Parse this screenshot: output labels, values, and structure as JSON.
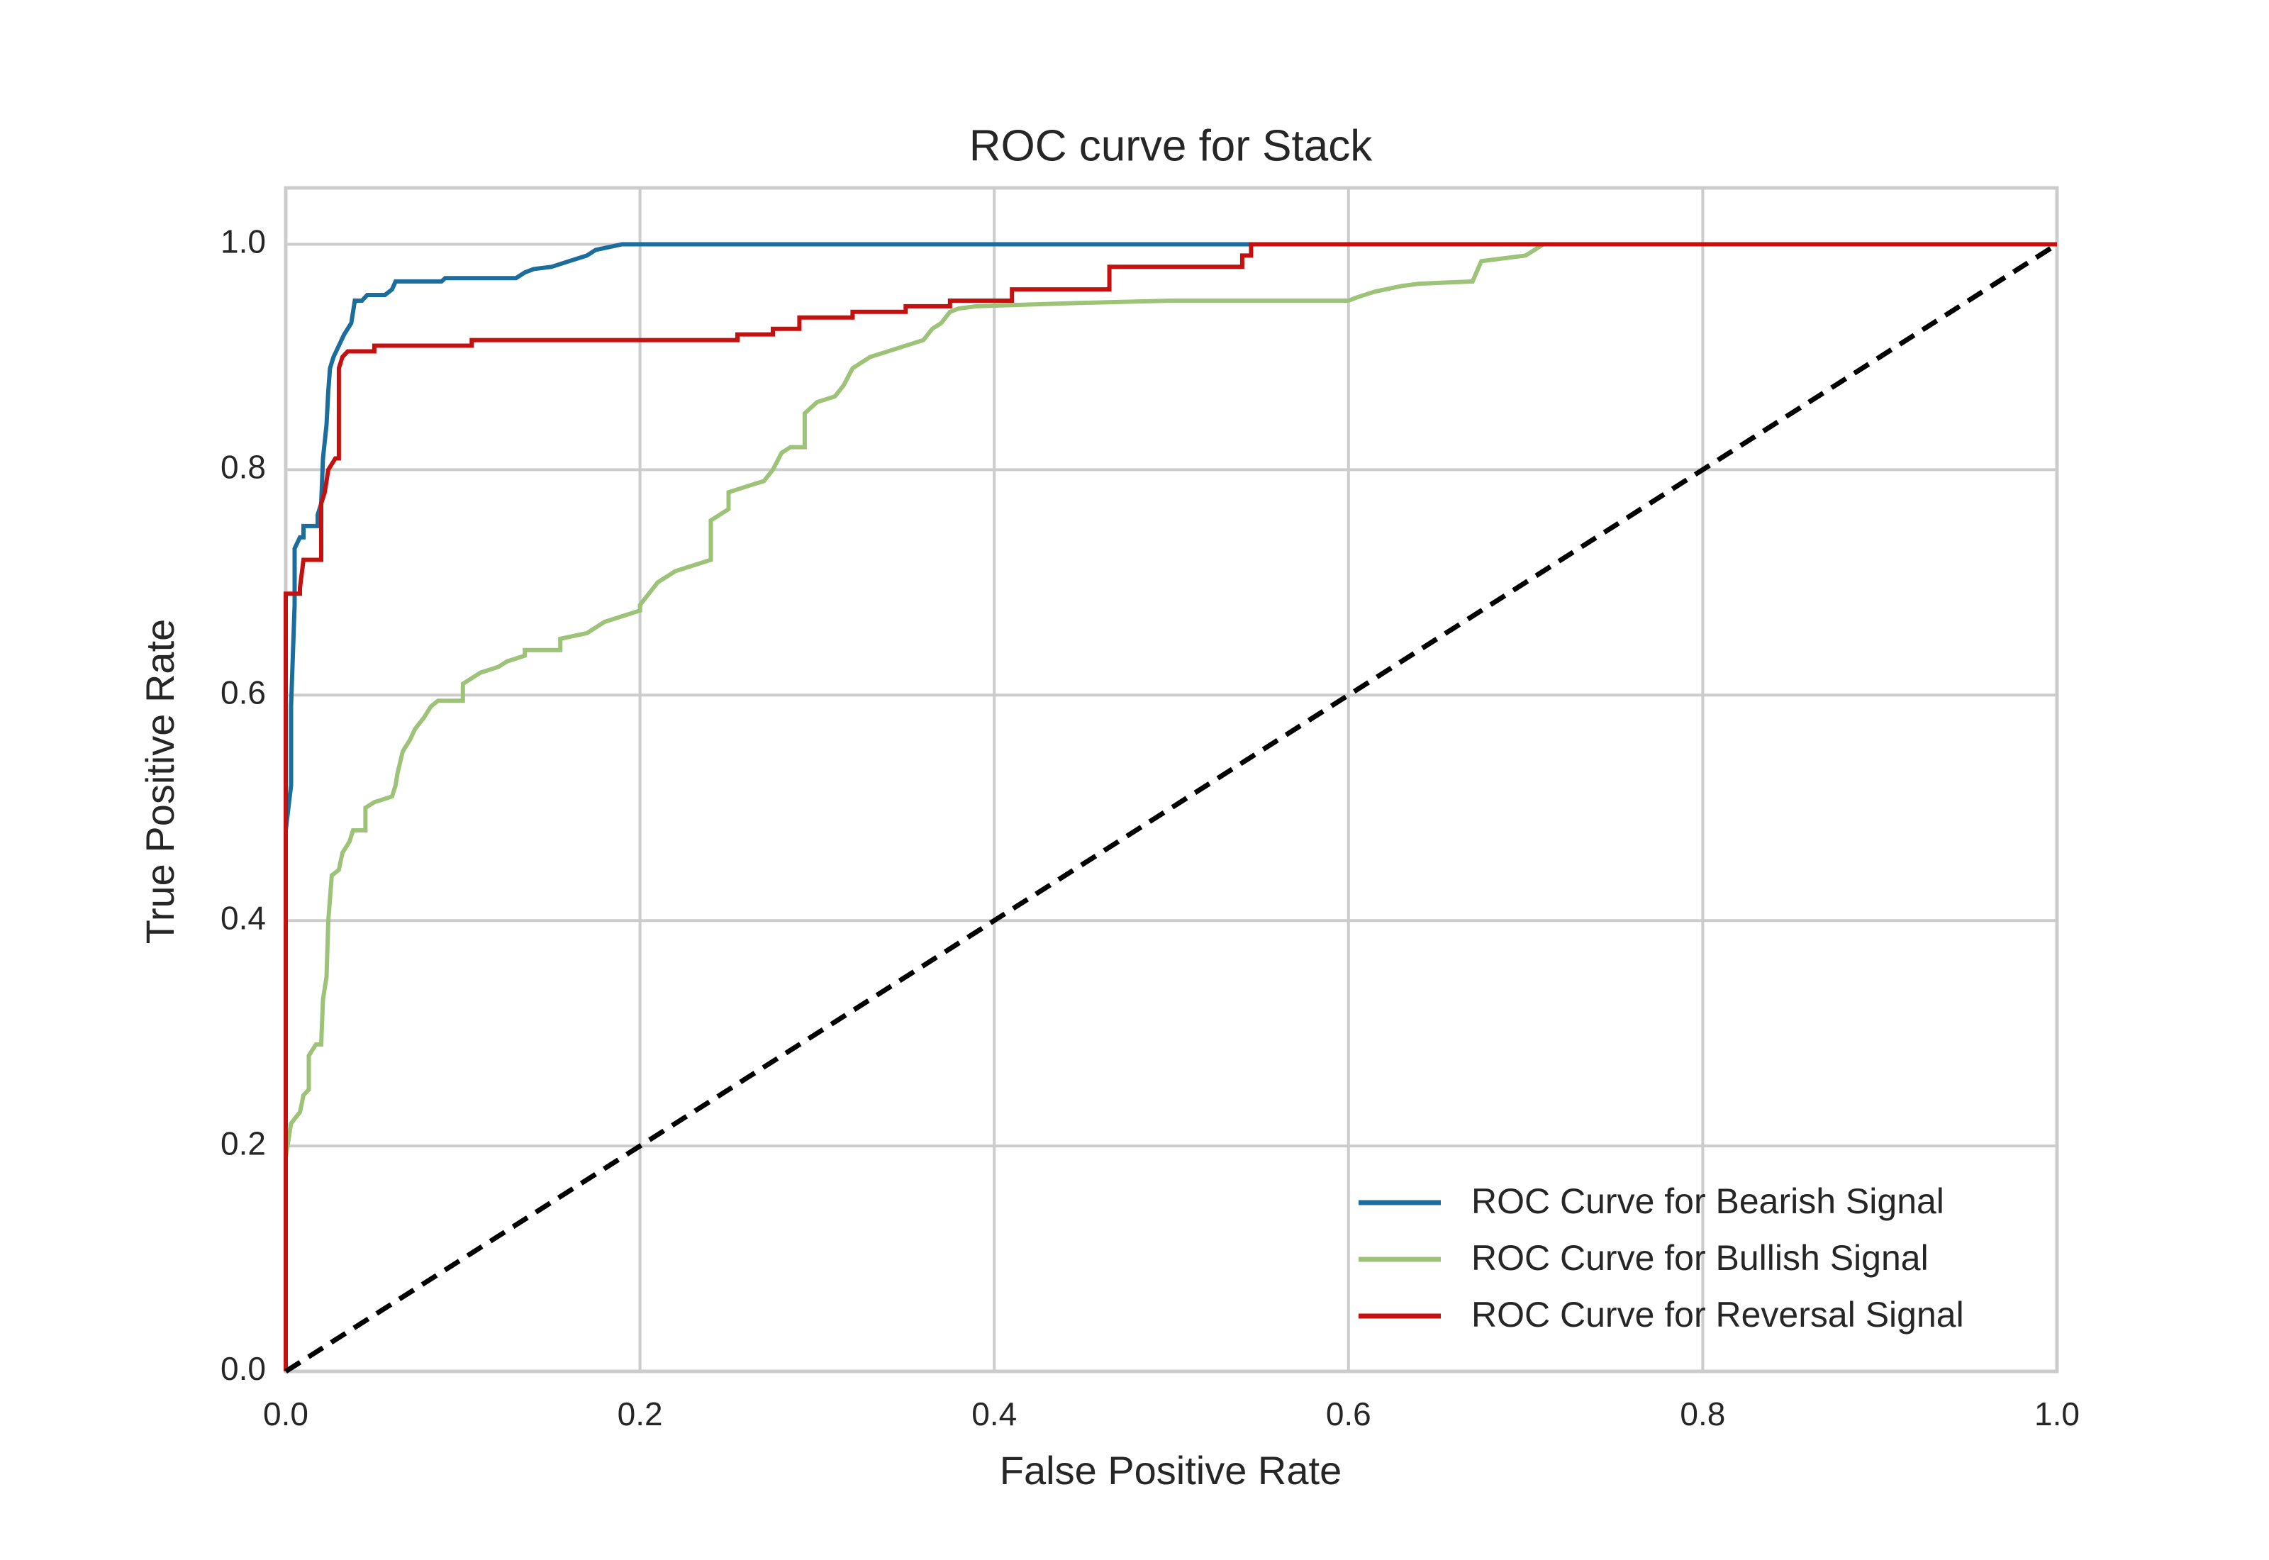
{
  "chart_data": {
    "type": "line",
    "title": "ROC curve for Stack",
    "x_label": "False Positive Rate",
    "y_label": "True Positive Rate",
    "xlim": [
      0,
      1
    ],
    "ylim": [
      0,
      1.05
    ],
    "xticks": [
      {
        "value": 0,
        "label": "0.0"
      },
      0.2,
      0.4,
      0.6,
      0.8,
      {
        "value": 1,
        "label": "1.0"
      }
    ],
    "yticks": [
      {
        "value": 0,
        "label": "0.0"
      },
      0.2,
      0.4,
      0.6,
      0.8,
      {
        "value": 1,
        "label": "1.0"
      }
    ],
    "grid": true,
    "legend": "lower right",
    "series": [
      {
        "name": "ROC Curve for Bearish Signal",
        "color": "#1a6d9c",
        "x": [
          0,
          0,
          0.003,
          0.003,
          0.005,
          0.005,
          0.008,
          0.01,
          0.01,
          0.018,
          0.018,
          0.02,
          0.021,
          0.023,
          0.024,
          0.025,
          0.027,
          0.03,
          0.033,
          0.037,
          0.038,
          0.039,
          0.043,
          0.046,
          0.056,
          0.06,
          0.062,
          0.088,
          0.09,
          0.13,
          0.135,
          0.14,
          0.15,
          0.16,
          0.17,
          0.175,
          0.19,
          1
        ],
        "values": [
          0,
          0.48,
          0.52,
          0.59,
          0.68,
          0.73,
          0.74,
          0.74,
          0.75,
          0.75,
          0.76,
          0.77,
          0.81,
          0.84,
          0.87,
          0.89,
          0.9,
          0.91,
          0.92,
          0.93,
          0.94,
          0.95,
          0.95,
          0.955,
          0.955,
          0.96,
          0.967,
          0.967,
          0.97,
          0.97,
          0.975,
          0.978,
          0.98,
          0.985,
          0.99,
          0.995,
          1,
          1
        ]
      },
      {
        "name": "ROC Curve for Bullish Signal",
        "color": "#9dc378",
        "x": [
          0,
          0,
          0.003,
          0.008,
          0.01,
          0.013,
          0.013,
          0.017,
          0.02,
          0.021,
          0.023,
          0.024,
          0.026,
          0.03,
          0.032,
          0.036,
          0.038,
          0.045,
          0.045,
          0.05,
          0.06,
          0.062,
          0.063,
          0.066,
          0.07,
          0.073,
          0.078,
          0.082,
          0.086,
          0.1,
          0.1,
          0.11,
          0.12,
          0.125,
          0.135,
          0.135,
          0.155,
          0.155,
          0.17,
          0.18,
          0.19,
          0.2,
          0.2,
          0.205,
          0.21,
          0.22,
          0.24,
          0.24,
          0.25,
          0.25,
          0.26,
          0.27,
          0.275,
          0.28,
          0.285,
          0.293,
          0.293,
          0.3,
          0.31,
          0.315,
          0.32,
          0.33,
          0.34,
          0.35,
          0.36,
          0.365,
          0.37,
          0.375,
          0.38,
          0.39,
          0.45,
          0.5,
          0.6,
          0.605,
          0.615,
          0.63,
          0.64,
          0.67,
          0.675,
          0.7,
          0.71,
          1
        ],
        "values": [
          0,
          0.19,
          0.22,
          0.23,
          0.245,
          0.25,
          0.28,
          0.29,
          0.29,
          0.33,
          0.35,
          0.4,
          0.44,
          0.445,
          0.46,
          0.47,
          0.48,
          0.48,
          0.5,
          0.505,
          0.51,
          0.52,
          0.53,
          0.55,
          0.56,
          0.57,
          0.58,
          0.59,
          0.595,
          0.595,
          0.61,
          0.62,
          0.625,
          0.63,
          0.635,
          0.64,
          0.64,
          0.65,
          0.655,
          0.665,
          0.67,
          0.675,
          0.68,
          0.69,
          0.7,
          0.71,
          0.72,
          0.755,
          0.765,
          0.78,
          0.785,
          0.79,
          0.8,
          0.815,
          0.82,
          0.82,
          0.85,
          0.86,
          0.865,
          0.875,
          0.89,
          0.9,
          0.905,
          0.91,
          0.915,
          0.925,
          0.93,
          0.94,
          0.943,
          0.945,
          0.948,
          0.95,
          0.95,
          0.953,
          0.958,
          0.963,
          0.965,
          0.967,
          0.985,
          0.99,
          1,
          1
        ]
      },
      {
        "name": "ROC Curve for Reversal Signal",
        "color": "#c4110f",
        "x": [
          0,
          0,
          0.008,
          0.008,
          0.01,
          0.02,
          0.02,
          0.022,
          0.024,
          0.028,
          0.03,
          0.03,
          0.032,
          0.035,
          0.05,
          0.05,
          0.105,
          0.105,
          0.255,
          0.255,
          0.275,
          0.275,
          0.29,
          0.29,
          0.32,
          0.32,
          0.35,
          0.35,
          0.375,
          0.375,
          0.41,
          0.41,
          0.465,
          0.465,
          0.54,
          0.54,
          0.545,
          0.545,
          1
        ],
        "values": [
          0,
          0.69,
          0.69,
          0.695,
          0.72,
          0.72,
          0.77,
          0.78,
          0.8,
          0.81,
          0.81,
          0.89,
          0.9,
          0.905,
          0.905,
          0.91,
          0.91,
          0.915,
          0.915,
          0.92,
          0.92,
          0.925,
          0.925,
          0.935,
          0.935,
          0.94,
          0.94,
          0.945,
          0.945,
          0.95,
          0.95,
          0.96,
          0.96,
          0.98,
          0.98,
          0.99,
          0.99,
          1,
          1
        ]
      }
    ],
    "reference_line": {
      "x": [
        0,
        1
      ],
      "values": [
        0,
        1
      ],
      "color": "#000000",
      "dashed": true
    }
  }
}
